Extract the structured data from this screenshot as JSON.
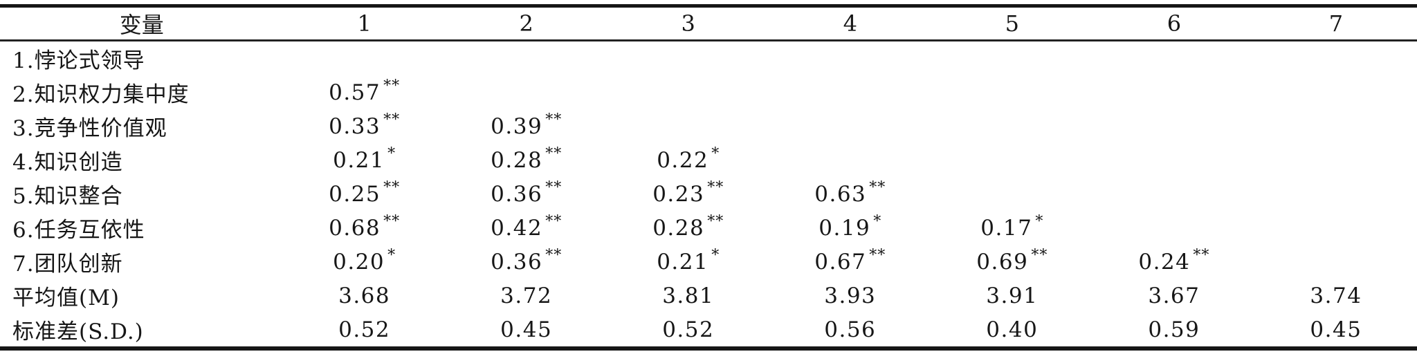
{
  "colors": {
    "text": "#161616",
    "rule": "#161616",
    "background": "#ffffff"
  },
  "table": {
    "header": {
      "variable_label": "变量",
      "columns": [
        "1",
        "2",
        "3",
        "4",
        "5",
        "6",
        "7"
      ]
    },
    "rows": [
      {
        "label": "1.悖论式领导",
        "cells": [
          "",
          "",
          "",
          "",
          "",
          "",
          ""
        ]
      },
      {
        "label": "2.知识权力集中度",
        "cells": [
          "0.57**",
          "",
          "",
          "",
          "",
          "",
          ""
        ]
      },
      {
        "label": "3.竞争性价值观",
        "cells": [
          "0.33**",
          "0.39**",
          "",
          "",
          "",
          "",
          ""
        ]
      },
      {
        "label": "4.知识创造",
        "cells": [
          "0.21*",
          "0.28**",
          "0.22*",
          "",
          "",
          "",
          ""
        ]
      },
      {
        "label": "5.知识整合",
        "cells": [
          "0.25**",
          "0.36**",
          "0.23**",
          "0.63**",
          "",
          "",
          ""
        ]
      },
      {
        "label": "6.任务互依性",
        "cells": [
          "0.68**",
          "0.42**",
          "0.28**",
          "0.19*",
          "0.17*",
          "",
          ""
        ]
      },
      {
        "label": "7.团队创新",
        "cells": [
          "0.20*",
          "0.36**",
          "0.21*",
          "0.67**",
          "0.69**",
          "0.24**",
          ""
        ]
      },
      {
        "label": "平均值(M)",
        "cells": [
          "3.68",
          "3.72",
          "3.81",
          "3.93",
          "3.91",
          "3.67",
          "3.74"
        ]
      },
      {
        "label": "标准差(S.D.)",
        "cells": [
          "0.52",
          "0.45",
          "0.52",
          "0.56",
          "0.40",
          "0.59",
          "0.45"
        ]
      }
    ]
  }
}
